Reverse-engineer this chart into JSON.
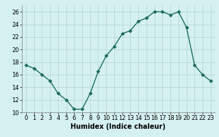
{
  "x": [
    0,
    1,
    2,
    3,
    4,
    5,
    6,
    7,
    8,
    9,
    10,
    11,
    12,
    13,
    14,
    15,
    16,
    17,
    18,
    19,
    20,
    21,
    22,
    23
  ],
  "y": [
    17.5,
    17.0,
    16.0,
    15.0,
    13.0,
    12.0,
    10.5,
    10.5,
    13.0,
    16.5,
    19.0,
    20.5,
    22.5,
    23.0,
    24.5,
    25.0,
    26.0,
    26.0,
    25.5,
    26.0,
    23.5,
    17.5,
    16.0,
    15.0
  ],
  "line_color": "#1a6b5a",
  "marker": "D",
  "marker_size": 2.5,
  "bg_color": "#d4f0f0",
  "grid_color": "#b8d8d8",
  "xlabel": "Humidex (Indice chaleur)",
  "xlim": [
    -0.5,
    23.5
  ],
  "ylim": [
    10,
    27
  ],
  "yticks": [
    10,
    12,
    14,
    16,
    18,
    20,
    22,
    24,
    26
  ],
  "xticks": [
    0,
    1,
    2,
    3,
    4,
    5,
    6,
    7,
    8,
    9,
    10,
    11,
    12,
    13,
    14,
    15,
    16,
    17,
    18,
    19,
    20,
    21,
    22,
    23
  ],
  "tick_fontsize": 6,
  "label_fontsize": 7,
  "linewidth": 1.0
}
